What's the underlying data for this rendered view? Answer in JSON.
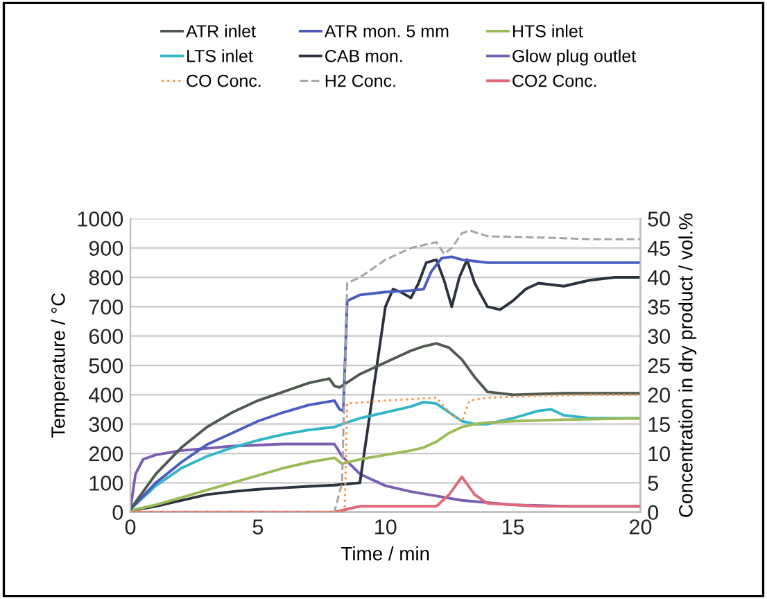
{
  "chart_data": {
    "type": "line",
    "xlabel": "Time / min",
    "ylabel": "Temperature / °C",
    "y2label": "Concentration in dry product / vol.%",
    "xlim": [
      0,
      20
    ],
    "xticks": [
      0,
      5,
      10,
      15,
      20
    ],
    "ylim": [
      0,
      1000
    ],
    "yticks": [
      0,
      100,
      200,
      300,
      400,
      500,
      600,
      700,
      800,
      900,
      1000
    ],
    "y2lim": [
      0,
      50
    ],
    "y2ticks": [
      0,
      5,
      10,
      15,
      20,
      25,
      30,
      35,
      40,
      45,
      50
    ],
    "grid": "y",
    "legend": "top",
    "series": [
      {
        "name": "ATR inlet",
        "color": "#505a50",
        "x": [
          0,
          1,
          2,
          3,
          4,
          5,
          6,
          7,
          7.8,
          8,
          8.2,
          9,
          10,
          11,
          11.5,
          12,
          12.5,
          13,
          13.5,
          14,
          15,
          17,
          20
        ],
        "values": [
          10,
          130,
          220,
          290,
          340,
          380,
          410,
          440,
          455,
          430,
          425,
          470,
          510,
          550,
          565,
          575,
          560,
          520,
          460,
          410,
          400,
          405,
          405
        ]
      },
      {
        "name": "ATR mon. 5 mm",
        "color": "#4a5cc0",
        "x": [
          0,
          1,
          2,
          3,
          4,
          5,
          6,
          7,
          8,
          8.2,
          8.35,
          8.5,
          9,
          10,
          11,
          11.5,
          11.8,
          12.2,
          12.6,
          13,
          13.5,
          14,
          15,
          17,
          20
        ],
        "values": [
          10,
          100,
          170,
          230,
          270,
          310,
          340,
          365,
          380,
          350,
          345,
          720,
          740,
          750,
          755,
          760,
          820,
          865,
          870,
          860,
          855,
          850,
          850,
          850,
          850
        ]
      },
      {
        "name": "HTS inlet",
        "color": "#9bbb59",
        "x": [
          0,
          1,
          2,
          3,
          4,
          5,
          6,
          7,
          8,
          8.3,
          9,
          10,
          11,
          11.5,
          12,
          12.5,
          13,
          13.5,
          14,
          15,
          17,
          20
        ],
        "values": [
          5,
          25,
          50,
          75,
          100,
          125,
          150,
          170,
          185,
          165,
          180,
          195,
          210,
          220,
          240,
          270,
          290,
          300,
          305,
          310,
          315,
          320
        ]
      },
      {
        "name": "LTS inlet",
        "color": "#33b5c8",
        "x": [
          0,
          1,
          2,
          3,
          4,
          5,
          6,
          7,
          8,
          8.3,
          9,
          10,
          11,
          11.5,
          12,
          12.5,
          13,
          13.5,
          14,
          15,
          16,
          16.5,
          17,
          18,
          20
        ],
        "values": [
          10,
          90,
          150,
          190,
          220,
          245,
          265,
          280,
          290,
          300,
          320,
          340,
          360,
          375,
          370,
          340,
          310,
          300,
          300,
          320,
          345,
          350,
          330,
          320,
          320
        ]
      },
      {
        "name": "CAB mon.",
        "color": "#2b3340",
        "x": [
          0,
          1,
          2,
          3,
          4,
          5,
          6,
          7,
          8,
          9,
          9.5,
          10,
          10.3,
          10.6,
          11,
          11.3,
          11.6,
          12,
          12.3,
          12.6,
          12.9,
          13.2,
          13.5,
          14,
          14.5,
          15,
          15.5,
          16,
          17,
          18,
          19,
          20
        ],
        "values": [
          5,
          20,
          40,
          60,
          70,
          78,
          83,
          88,
          92,
          100,
          400,
          700,
          760,
          750,
          730,
          780,
          850,
          860,
          790,
          700,
          800,
          860,
          780,
          700,
          690,
          720,
          760,
          780,
          770,
          790,
          800,
          800
        ]
      },
      {
        "name": "Glow plug outlet",
        "color": "#7a5fb0",
        "x": [
          0,
          0.2,
          0.5,
          1,
          2,
          4,
          6,
          8,
          8.3,
          9,
          10,
          11,
          12,
          13,
          15,
          17,
          20
        ],
        "values": [
          10,
          130,
          180,
          195,
          210,
          225,
          232,
          232,
          190,
          130,
          90,
          70,
          55,
          40,
          25,
          20,
          20
        ]
      },
      {
        "name": "CO Conc.",
        "color": "#f79646",
        "axis": "y2",
        "line_style": "dotted",
        "x": [
          0,
          2,
          4,
          6,
          8,
          8.4,
          8.5,
          10,
          12,
          12.5,
          13,
          13.3,
          14,
          16,
          18,
          20
        ],
        "values": [
          0,
          0,
          0,
          0,
          0,
          0,
          18.5,
          19,
          19.5,
          17,
          15.5,
          19,
          19.5,
          19.8,
          20,
          20
        ]
      },
      {
        "name": "H2 Conc.",
        "color": "#a6a6a6",
        "axis": "y2",
        "line_style": "dashed",
        "x": [
          0,
          8,
          8.3,
          8.5,
          9,
          10,
          10.5,
          11,
          11.5,
          12,
          12.3,
          12.6,
          13,
          13.3,
          14,
          16,
          18,
          20
        ],
        "values": [
          0,
          0,
          5,
          39,
          40,
          43,
          44,
          45,
          45.5,
          46,
          44,
          45,
          47.5,
          48,
          47,
          46.8,
          46.5,
          46.5
        ]
      },
      {
        "name": "CO2 Conc.",
        "color": "#e06878",
        "axis": "y2",
        "x": [
          0,
          8,
          8.5,
          9,
          10,
          12,
          12.5,
          13,
          13.5,
          14,
          16,
          20
        ],
        "values": [
          0,
          0,
          0.5,
          1,
          1,
          1,
          3,
          6,
          3,
          1.5,
          1,
          1
        ]
      }
    ]
  }
}
